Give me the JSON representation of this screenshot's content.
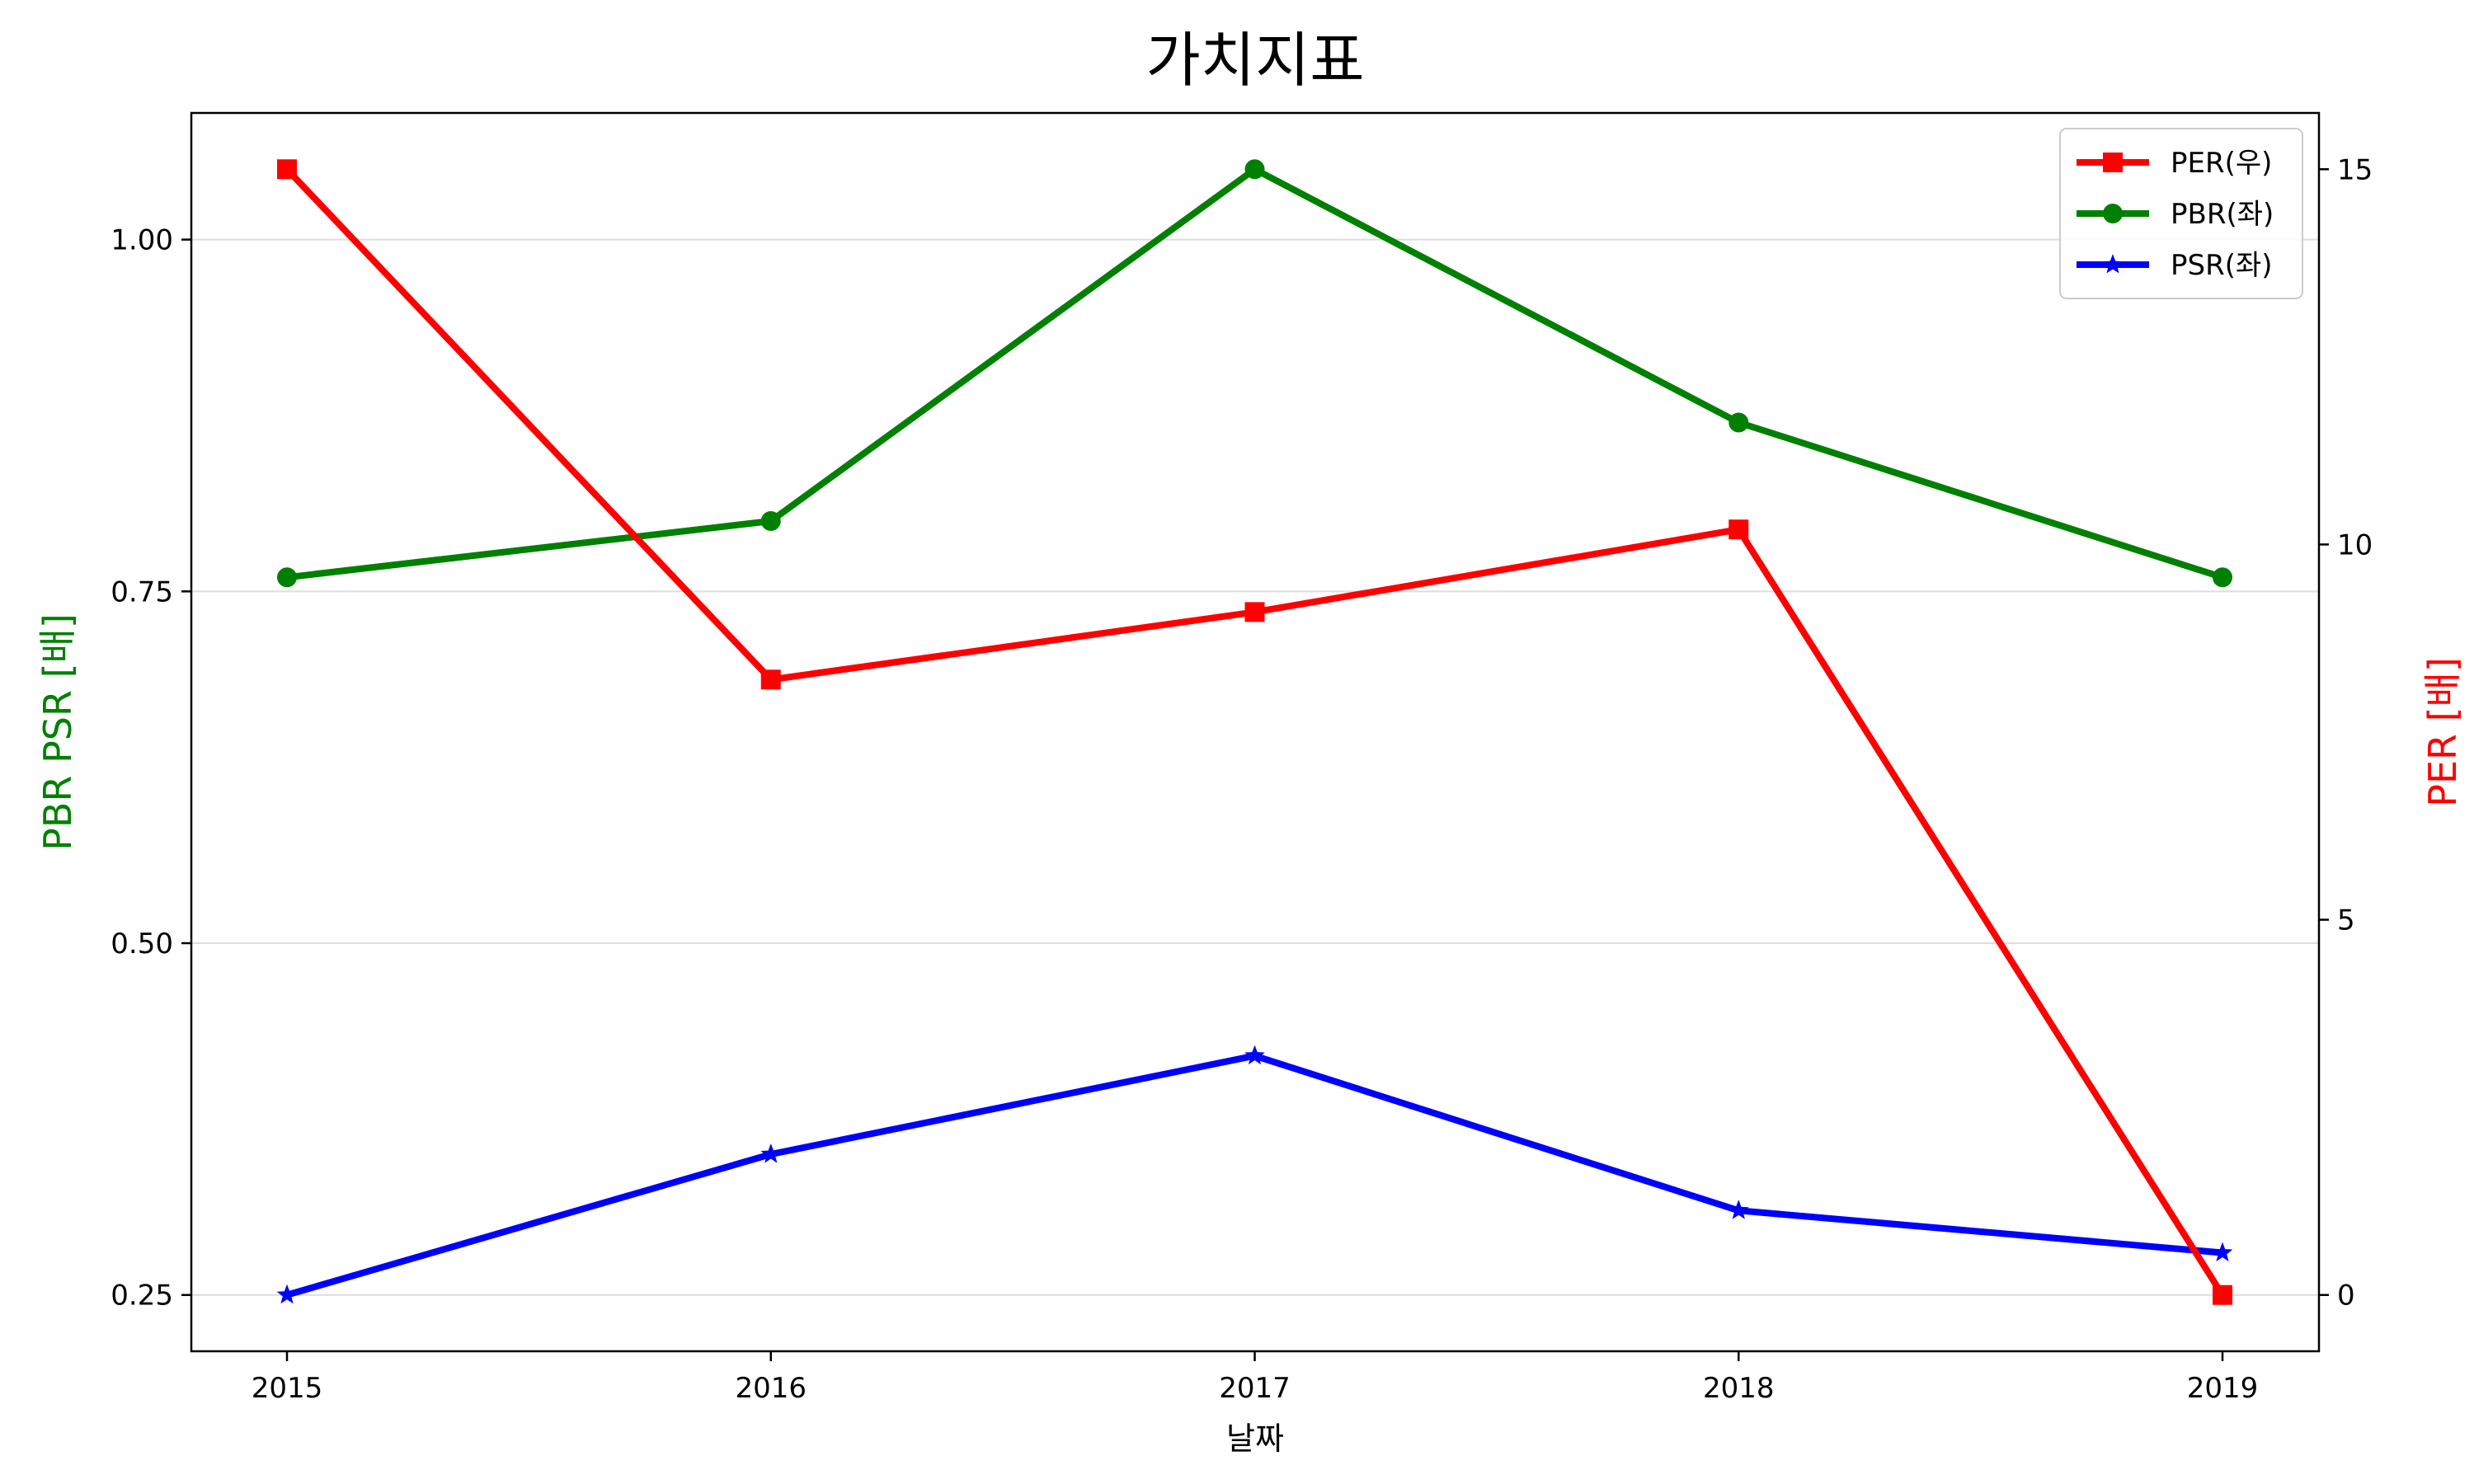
{
  "chart_data": {
    "type": "line",
    "title": "가치지표",
    "xlabel": "날짜",
    "ylabel_left": "PBR PSR [배]",
    "ylabel_right": "PER [배]",
    "categories": [
      "2015",
      "2016",
      "2017",
      "2018",
      "2019"
    ],
    "left_axis": {
      "ylim": [
        0.21,
        1.09
      ],
      "ticks": [
        "0.25",
        "0.50",
        "0.75",
        "1.00"
      ]
    },
    "right_axis": {
      "ylim": [
        -0.75,
        15.75
      ],
      "ticks": [
        "0",
        "5",
        "10",
        "15"
      ]
    },
    "grid": "horizontal",
    "legend_position": "top-right",
    "series": [
      {
        "name": "PER(우)",
        "axis": "right",
        "color": "#ff0000",
        "marker": "square",
        "values": [
          15.0,
          8.2,
          9.1,
          10.2,
          0.0
        ]
      },
      {
        "name": "PBR(좌)",
        "axis": "left",
        "color": "#008000",
        "marker": "circle",
        "values": [
          0.76,
          0.8,
          1.05,
          0.87,
          0.76
        ]
      },
      {
        "name": "PSR(좌)",
        "axis": "left",
        "color": "#0000ff",
        "marker": "star",
        "values": [
          0.25,
          0.35,
          0.42,
          0.31,
          0.28
        ]
      }
    ],
    "colors": {
      "left_label": "#008000",
      "right_label": "#ff0000"
    }
  }
}
